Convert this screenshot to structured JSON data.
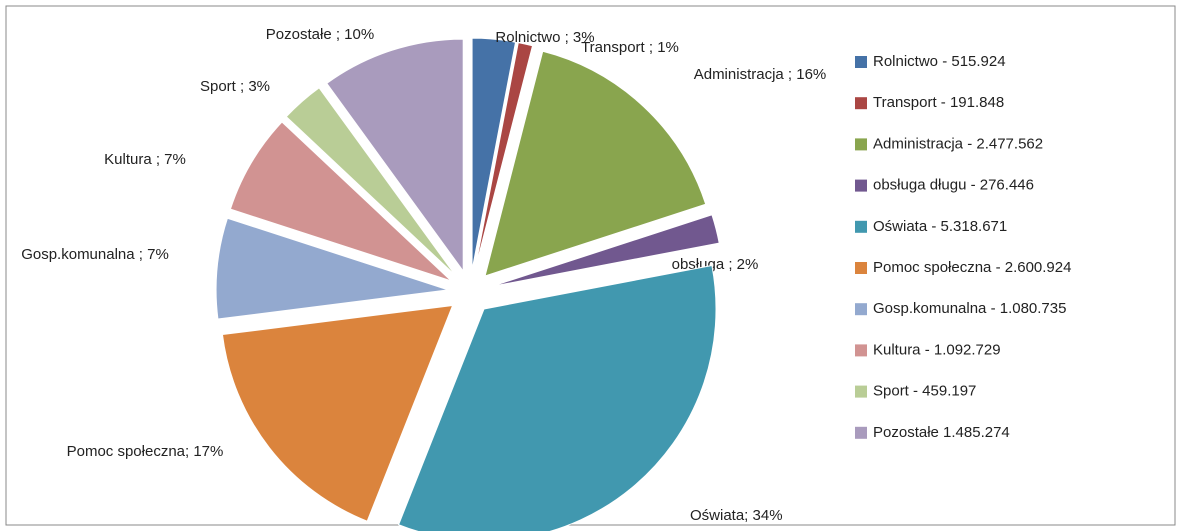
{
  "chart_data": {
    "type": "pie",
    "categories": [
      "Rolnictwo - 515.924",
      "Transport -  191.848",
      "Administracja - 2.477.562",
      "obsługa długu - 276.446",
      "Oświata - 5.318.671",
      "Pomoc społeczna - 2.600.924",
      "Gosp.komunalna - 1.080.735",
      "Kultura - 1.092.729",
      "Sport - 459.197",
      "Pozostałe 1.485.274"
    ],
    "values": [
      3,
      1,
      16,
      2,
      34,
      17,
      7,
      7,
      3,
      10
    ],
    "value_labels": [
      "Rolnictwo ; 3%",
      "Transport ; 1%",
      "Administracja ; 16%",
      "obsługa ; 2%",
      "Oświata; 34%",
      "Pomoc społeczna; 17%",
      "Gosp.komunalna ; 7%",
      "Kultura ; 7%",
      "Sport ; 3%",
      "Pozostałe ; 10%"
    ],
    "colors": [
      "#4572a7",
      "#aa4643",
      "#89a54e",
      "#71588f",
      "#4198af",
      "#db843d",
      "#93a9cf",
      "#d19392",
      "#b9cd96",
      "#a99bbd"
    ],
    "legend": "right"
  }
}
